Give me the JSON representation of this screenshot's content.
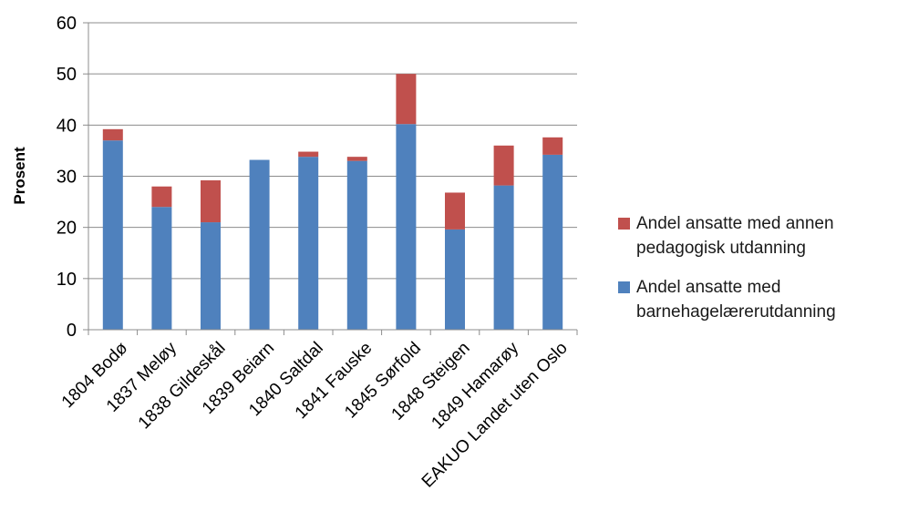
{
  "chart_data": {
    "type": "bar",
    "stacked": true,
    "categories": [
      "1804 Bodø",
      "1837 Meløy",
      "1838 Gildeskål",
      "1839 Beiarn",
      "1840 Saltdal",
      "1841 Fauske",
      "1845 Sørfold",
      "1848 Steigen",
      "1849 Hamarøy",
      "EAKUO Landet uten Oslo"
    ],
    "series": [
      {
        "name": "Andel ansatte med barnehagelærerutdanning",
        "color": "#4f81bd",
        "values": [
          37,
          24,
          21,
          33.2,
          33.8,
          33,
          40.2,
          19.6,
          28.2,
          34.2
        ]
      },
      {
        "name": "Andel ansatte med annen pedagogisk utdanning",
        "color": "#c0504d",
        "values": [
          2.2,
          4,
          8.2,
          0,
          1,
          0.8,
          9.8,
          7.2,
          7.8,
          3.4
        ]
      }
    ],
    "xlabel": "",
    "ylabel": "Prosent",
    "ylim": [
      0,
      60
    ],
    "yticks": [
      0,
      10,
      20,
      30,
      40,
      50,
      60
    ],
    "grid": true,
    "legend_position": "right"
  },
  "legend": [
    {
      "label": "Andel ansatte med annen pedagogisk utdanning",
      "color": "#c0504d"
    },
    {
      "label": "Andel ansatte med barnehagelærerutdanning",
      "color": "#4f81bd"
    }
  ]
}
